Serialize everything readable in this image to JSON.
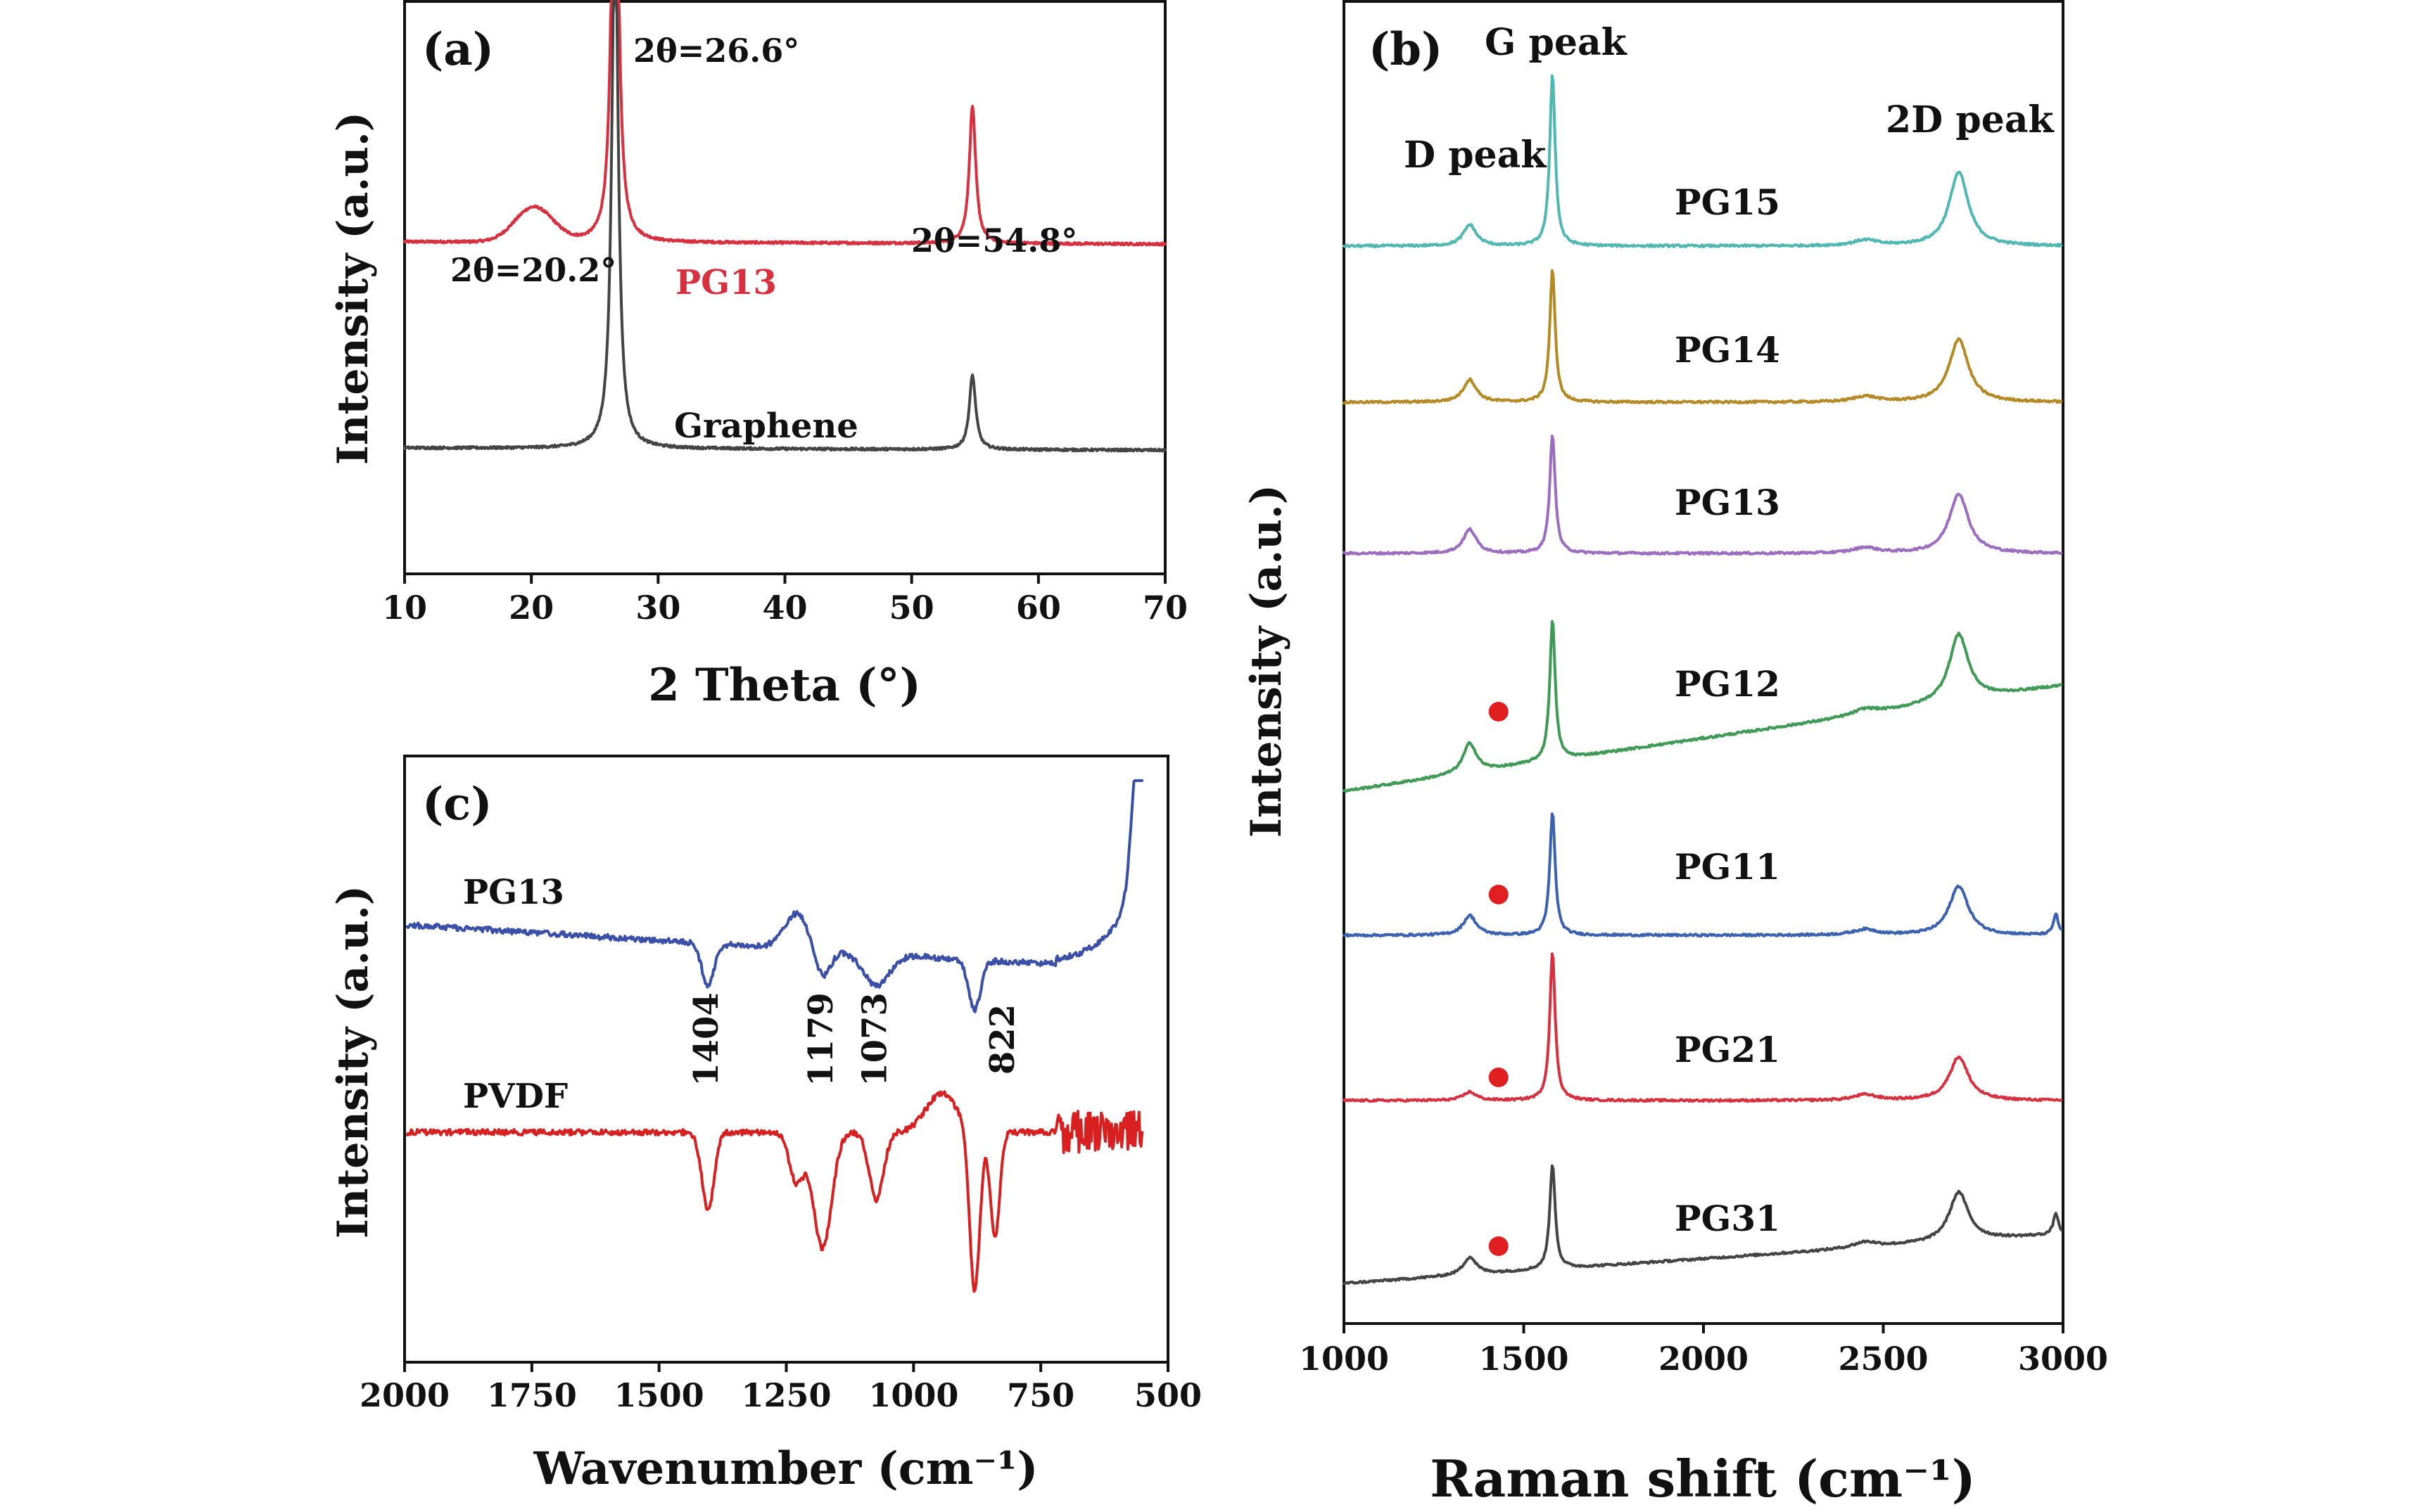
{
  "chart_data": [
    {
      "panel_label": "(a)",
      "type": "line",
      "xlabel": "2 Theta (°)",
      "ylabel": "Intensity (a.u.)",
      "xlim": [
        10,
        70
      ],
      "xticks": [
        10,
        20,
        30,
        40,
        50,
        60,
        70
      ],
      "y_scale": "arbitrary units, offset stacked",
      "series": [
        {
          "name": "PG13",
          "color": "#d9303f",
          "baseline": 0.58,
          "peaks": [
            {
              "x": 20.2,
              "height": 0.06,
              "width": 1.5
            },
            {
              "x": 26.6,
              "height": 1.0,
              "width": 0.28
            },
            {
              "x": 54.8,
              "height": 0.24,
              "width": 0.3
            }
          ]
        },
        {
          "name": "Graphene",
          "color": "#444444",
          "baseline": 0.22,
          "peaks": [
            {
              "x": 26.6,
              "height": 0.95,
              "width": 0.3
            },
            {
              "x": 54.8,
              "height": 0.13,
              "width": 0.3
            }
          ]
        }
      ],
      "annotations": [
        "2θ=26.6°",
        "2θ=20.2°",
        "2θ=54.8°"
      ]
    },
    {
      "panel_label": "(b)",
      "type": "line",
      "xlabel": "Raman shift (cm⁻¹)",
      "ylabel": "Intensity (a.u.)",
      "xlim": [
        1000,
        3000
      ],
      "xticks": [
        1000,
        1500,
        2000,
        2500,
        3000
      ],
      "y_scale": "arbitrary units, offset stacked",
      "peak_labels": [
        "D peak",
        "G peak",
        "2D peak"
      ],
      "peak_positions": {
        "D": 1350,
        "G": 1580,
        "2D": 2710
      },
      "series": [
        {
          "name": "PG15",
          "color": "#4fb8b0",
          "marker": false
        },
        {
          "name": "PG14",
          "color": "#b58a24",
          "marker": false
        },
        {
          "name": "PG13",
          "color": "#9b6cc0",
          "marker": false
        },
        {
          "name": "PG12",
          "color": "#3f9a55",
          "marker": true
        },
        {
          "name": "PG11",
          "color": "#3a62b0",
          "marker": true
        },
        {
          "name": "PG21",
          "color": "#d9303f",
          "marker": true
        },
        {
          "name": "PG31",
          "color": "#444444",
          "marker": true
        }
      ],
      "marker_x": 1430,
      "marker_color": "#e02020"
    },
    {
      "panel_label": "(c)",
      "type": "line",
      "xlabel": "Wavenumber (cm⁻¹)",
      "ylabel": "Intensity (a.u.)",
      "xlim": [
        2000,
        500
      ],
      "x_reversed": true,
      "xticks": [
        2000,
        1750,
        1500,
        1250,
        1000,
        750,
        500
      ],
      "y_scale": "arbitrary units, offset stacked",
      "series": [
        {
          "name": "PG13",
          "color": "#3a4fa8"
        },
        {
          "name": "PVDF",
          "color": "#d92020"
        }
      ],
      "band_labels": [
        "1404",
        "1179",
        "1073",
        "822"
      ]
    }
  ]
}
